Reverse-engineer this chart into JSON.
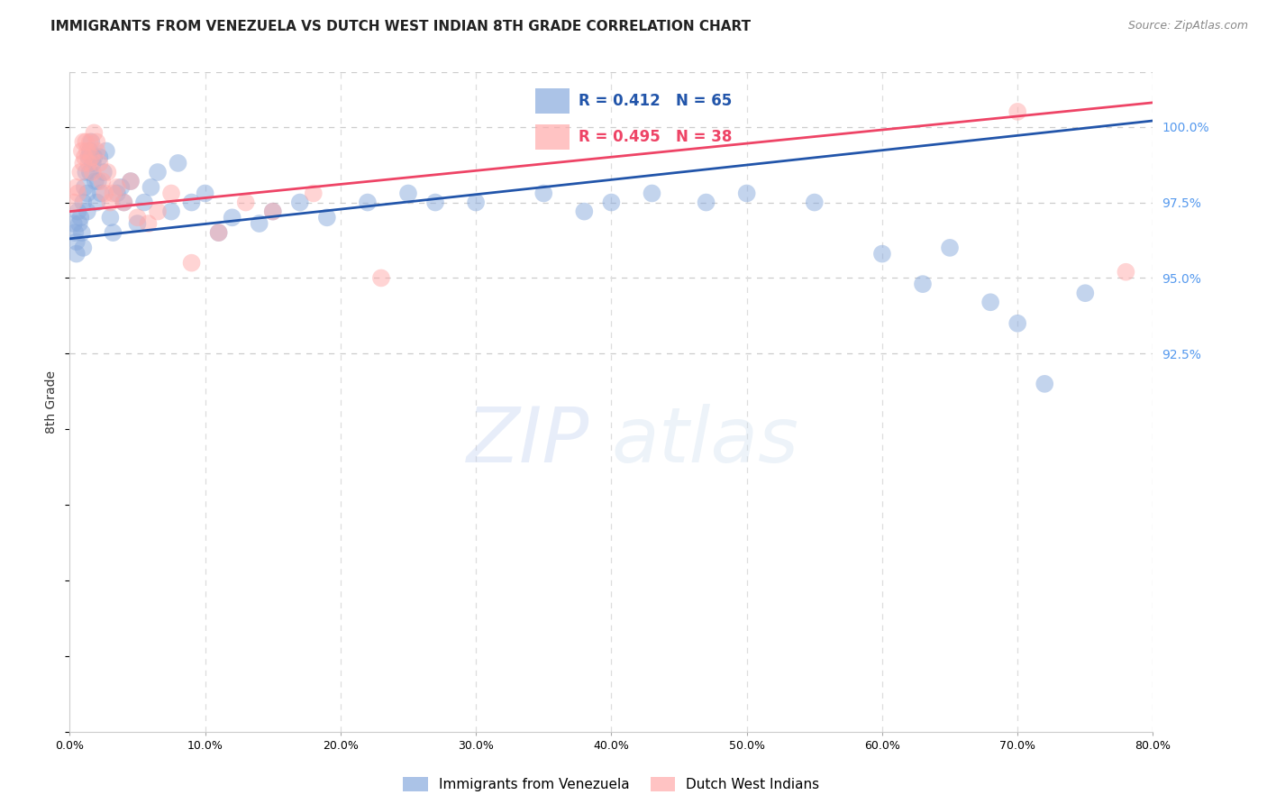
{
  "title": "IMMIGRANTS FROM VENEZUELA VS DUTCH WEST INDIAN 8TH GRADE CORRELATION CHART",
  "source": "Source: ZipAtlas.com",
  "ylabel": "8th Grade",
  "legend_label_blue": "Immigrants from Venezuela",
  "legend_label_pink": "Dutch West Indians",
  "x_ticks": [
    0.0,
    10.0,
    20.0,
    30.0,
    40.0,
    50.0,
    60.0,
    70.0,
    80.0
  ],
  "x_tick_labels": [
    "0.0%",
    "10.0%",
    "20.0%",
    "30.0%",
    "40.0%",
    "50.0%",
    "60.0%",
    "70.0%",
    "80.0%"
  ],
  "xlim": [
    0.0,
    80.0
  ],
  "ylim": [
    80.0,
    101.8
  ],
  "y_ticks_right": [
    92.5,
    95.0,
    97.5,
    100.0
  ],
  "y_tick_labels_right": [
    "92.5%",
    "95.0%",
    "97.5%",
    "100.0%"
  ],
  "legend_blue_r": "R = 0.412",
  "legend_blue_n": "N = 65",
  "legend_pink_r": "R = 0.495",
  "legend_pink_n": "N = 38",
  "blue_color": "#88AADD",
  "pink_color": "#FFAAAA",
  "blue_line_color": "#2255AA",
  "pink_line_color": "#EE4466",
  "watermark_zip": "ZIP",
  "watermark_atlas": "atlas",
  "blue_scatter_x": [
    0.3,
    0.4,
    0.5,
    0.5,
    0.6,
    0.7,
    0.8,
    0.9,
    1.0,
    1.0,
    1.1,
    1.2,
    1.3,
    1.3,
    1.4,
    1.5,
    1.5,
    1.6,
    1.7,
    1.8,
    1.9,
    2.0,
    2.1,
    2.2,
    2.3,
    2.5,
    2.7,
    3.0,
    3.2,
    3.5,
    3.8,
    4.0,
    4.5,
    5.0,
    5.5,
    6.0,
    6.5,
    7.5,
    8.0,
    9.0,
    10.0,
    11.0,
    12.0,
    14.0,
    15.0,
    17.0,
    19.0,
    22.0,
    25.0,
    27.0,
    30.0,
    35.0,
    38.0,
    40.0,
    43.0,
    47.0,
    50.0,
    55.0,
    60.0,
    63.0,
    65.0,
    68.0,
    70.0,
    72.0,
    75.0
  ],
  "blue_scatter_y": [
    96.8,
    96.5,
    96.2,
    95.8,
    97.2,
    96.8,
    97.0,
    96.5,
    97.5,
    96.0,
    98.0,
    98.5,
    97.8,
    97.2,
    99.0,
    99.2,
    98.5,
    99.5,
    98.8,
    99.0,
    98.2,
    97.5,
    98.2,
    99.0,
    97.8,
    98.5,
    99.2,
    97.0,
    96.5,
    97.8,
    98.0,
    97.5,
    98.2,
    96.8,
    97.5,
    98.0,
    98.5,
    97.2,
    98.8,
    97.5,
    97.8,
    96.5,
    97.0,
    96.8,
    97.2,
    97.5,
    97.0,
    97.5,
    97.8,
    97.5,
    97.5,
    97.8,
    97.2,
    97.5,
    97.8,
    97.5,
    97.8,
    97.5,
    95.8,
    94.8,
    96.0,
    94.2,
    93.5,
    91.5,
    94.5
  ],
  "pink_scatter_x": [
    0.3,
    0.5,
    0.6,
    0.8,
    0.9,
    1.0,
    1.0,
    1.1,
    1.2,
    1.3,
    1.4,
    1.5,
    1.6,
    1.7,
    1.8,
    2.0,
    2.0,
    2.2,
    2.4,
    2.6,
    2.8,
    3.0,
    3.2,
    3.5,
    4.0,
    4.5,
    5.0,
    5.8,
    6.5,
    7.5,
    9.0,
    11.0,
    13.0,
    15.0,
    18.0,
    23.0,
    70.0,
    78.0
  ],
  "pink_scatter_y": [
    97.5,
    98.0,
    97.8,
    98.5,
    99.2,
    99.5,
    98.8,
    99.0,
    99.5,
    99.2,
    98.8,
    99.5,
    99.0,
    98.5,
    99.8,
    99.5,
    99.2,
    98.8,
    98.2,
    97.8,
    98.5,
    97.5,
    97.8,
    98.0,
    97.5,
    98.2,
    97.0,
    96.8,
    97.2,
    97.8,
    95.5,
    96.5,
    97.5,
    97.2,
    97.8,
    95.0,
    100.5,
    95.2
  ],
  "blue_trend_x0": 0.0,
  "blue_trend_y0": 96.3,
  "blue_trend_x1": 80.0,
  "blue_trend_y1": 100.2,
  "pink_trend_x0": 0.0,
  "pink_trend_y0": 97.2,
  "pink_trend_x1": 80.0,
  "pink_trend_y1": 100.8
}
